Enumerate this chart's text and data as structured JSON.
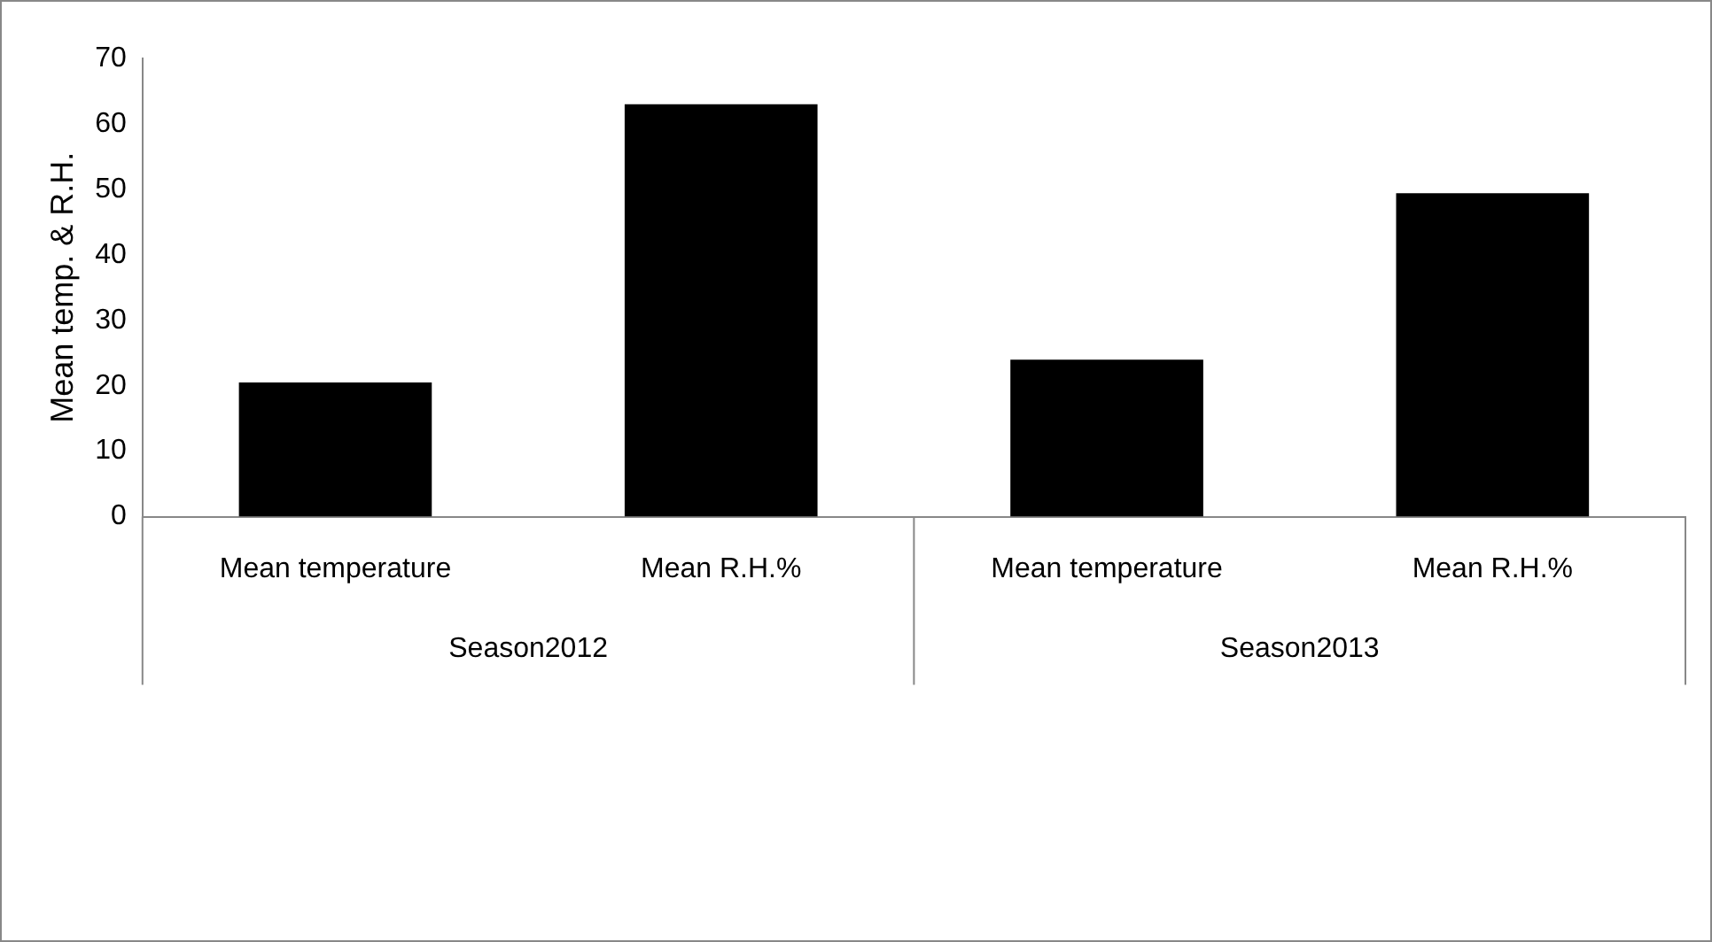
{
  "chart_data": {
    "type": "bar",
    "ylabel": "Mean temp. & R.H.",
    "categories": [
      "Mean temperature",
      "Mean R.H.%",
      "Mean temperature",
      "Mean R.H.%"
    ],
    "values": [
      20.5,
      63,
      24,
      49.4
    ],
    "color": "#000000",
    "ylim": [
      0,
      70
    ],
    "yticks": [
      0,
      10,
      20,
      30,
      40,
      50,
      60,
      70
    ],
    "grid": false,
    "legend": false,
    "annotations": [
      "Season2012",
      "Season2013"
    ]
  }
}
